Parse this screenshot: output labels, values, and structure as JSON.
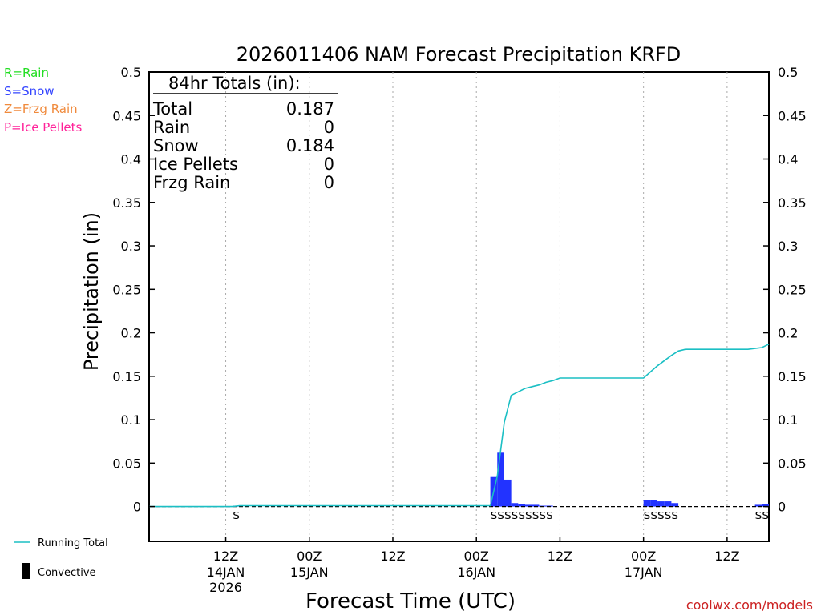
{
  "chart_data": {
    "type": "bar",
    "title": "2026011406 NAM Forecast Precipitation KRFD",
    "xlabel": "Forecast Time (UTC)",
    "ylabel": "Precipitation (in)",
    "ylim": [
      -0.04,
      0.5
    ],
    "y_ticks": [
      0,
      0.05,
      0.1,
      0.15,
      0.2,
      0.25,
      0.3,
      0.35,
      0.4,
      0.45,
      0.5
    ],
    "y_tick_labels": [
      "0",
      "0.05",
      "0.1",
      "0.15",
      "0.2",
      "0.25",
      "0.3",
      "0.35",
      "0.4",
      "0.45",
      "0.5"
    ],
    "x_range_hours": [
      -5,
      84
    ],
    "x_ticks": [
      {
        "hour": 6,
        "label": "12Z",
        "date": "14JAN",
        "year": "2026"
      },
      {
        "hour": 18,
        "label": "00Z",
        "date": "15JAN",
        "year": ""
      },
      {
        "hour": 30,
        "label": "12Z",
        "date": "",
        "year": ""
      },
      {
        "hour": 42,
        "label": "00Z",
        "date": "16JAN",
        "year": ""
      },
      {
        "hour": 54,
        "label": "12Z",
        "date": "",
        "year": ""
      },
      {
        "hour": 66,
        "label": "00Z",
        "date": "17JAN",
        "year": ""
      },
      {
        "hour": 78,
        "label": "12Z",
        "date": "",
        "year": ""
      }
    ],
    "grid": true,
    "series": [
      {
        "name": "Snow",
        "color": "#2233ff",
        "bar_hours": [
          8,
          45,
          46,
          47,
          48,
          49,
          50,
          51,
          52,
          53,
          67,
          68,
          69,
          70,
          71,
          83,
          84
        ],
        "values": [
          0.001,
          0.034,
          0.062,
          0.031,
          0.004,
          0.003,
          0.002,
          0.002,
          0.001,
          0.001,
          0.007,
          0.007,
          0.006,
          0.006,
          0.004,
          0.002,
          0.003
        ]
      },
      {
        "name": "Running Total",
        "color": "#1bbfc4",
        "hours": [
          -5,
          7,
          8,
          44,
          45,
          46,
          47,
          48,
          49,
          50,
          51,
          52,
          53,
          54,
          64,
          65,
          66,
          67,
          68,
          69,
          70,
          71,
          72,
          80,
          81,
          82,
          83,
          84
        ],
        "values": [
          0,
          0,
          0.001,
          0.001,
          0.035,
          0.097,
          0.128,
          0.132,
          0.136,
          0.138,
          0.14,
          0.143,
          0.145,
          0.148,
          0.148,
          0.148,
          0.148,
          0.155,
          0.162,
          0.168,
          0.174,
          0.179,
          0.181,
          0.181,
          0.181,
          0.182,
          0.183,
          0.187
        ]
      }
    ],
    "ptype_markers": [
      {
        "start_hour": 8,
        "text": "S"
      },
      {
        "start_hour": 45,
        "text": "SSSSSSSSS"
      },
      {
        "start_hour": 67,
        "text": "SSSSS"
      },
      {
        "start_hour": 83,
        "text": "SS"
      }
    ],
    "ptype_legend": [
      {
        "text": "R=Rain",
        "color": "#22dd22"
      },
      {
        "text": "S=Snow",
        "color": "#3344ff"
      },
      {
        "text": "Z=Frzg Rain",
        "color": "#f08a3c"
      },
      {
        "text": "P=Ice Pellets",
        "color": "#ff2299"
      }
    ],
    "totals": {
      "header": "84hr Totals (in):",
      "rows": [
        {
          "label": "Total",
          "value": "0.187"
        },
        {
          "label": "Rain",
          "value": "0"
        },
        {
          "label": "Snow",
          "value": "0.184"
        },
        {
          "label": "Ice Pellets",
          "value": "0"
        },
        {
          "label": "Frzg Rain",
          "value": "0"
        }
      ]
    },
    "bottom_legend": {
      "running_total": "Running Total",
      "convective": "Convective"
    },
    "credit": "coolwx.com/models"
  }
}
